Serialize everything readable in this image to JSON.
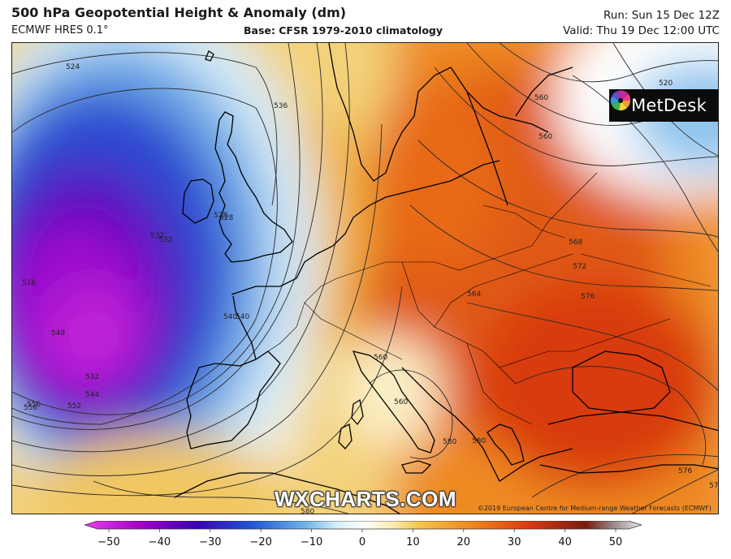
{
  "header": {
    "title": "500 hPa Geopotential Height & Anomaly (dm)",
    "model": "ECMWF HRES 0.1°",
    "base": "Base: CFSR 1979-2010 climatology",
    "run": "Run: Sun 15 Dec 12Z",
    "valid": "Valid: Thu 19 Dec 12:00 UTC"
  },
  "logo": {
    "text": "MetDesk"
  },
  "watermark": "WXCHARTS.COM",
  "copyright": "©2019 European Centre for Medium-range Weather Forecasts (ECMWF)",
  "colorbar": {
    "ticks": [
      "−50",
      "−40",
      "−30",
      "−20",
      "−10",
      "0",
      "10",
      "20",
      "30",
      "40",
      "50"
    ],
    "range": [
      -50,
      50
    ],
    "stops": [
      {
        "v": -50,
        "c": "#f03cf0"
      },
      {
        "v": -40,
        "c": "#a400c8"
      },
      {
        "v": -30,
        "c": "#3a00b0"
      },
      {
        "v": -20,
        "c": "#1e56d8"
      },
      {
        "v": -10,
        "c": "#72b8ea"
      },
      {
        "v": -5,
        "c": "#d2ecf8"
      },
      {
        "v": 0,
        "c": "#ffffff"
      },
      {
        "v": 5,
        "c": "#fbeeb8"
      },
      {
        "v": 10,
        "c": "#f5c64a"
      },
      {
        "v": 20,
        "c": "#ef8418"
      },
      {
        "v": 30,
        "c": "#d83a10"
      },
      {
        "v": 40,
        "c": "#7a1a10"
      },
      {
        "v": 45,
        "c": "#9a8a8a"
      },
      {
        "v": 50,
        "c": "#e8e8e8"
      }
    ]
  },
  "contour_labels": [
    "524",
    "536",
    "532",
    "528",
    "520",
    "540",
    "548",
    "556",
    "532",
    "544",
    "552",
    "516",
    "532",
    "528",
    "540",
    "556",
    "560",
    "564",
    "568",
    "572",
    "576",
    "580",
    "576",
    "572",
    "560",
    "560",
    "580",
    "580",
    "560"
  ]
}
